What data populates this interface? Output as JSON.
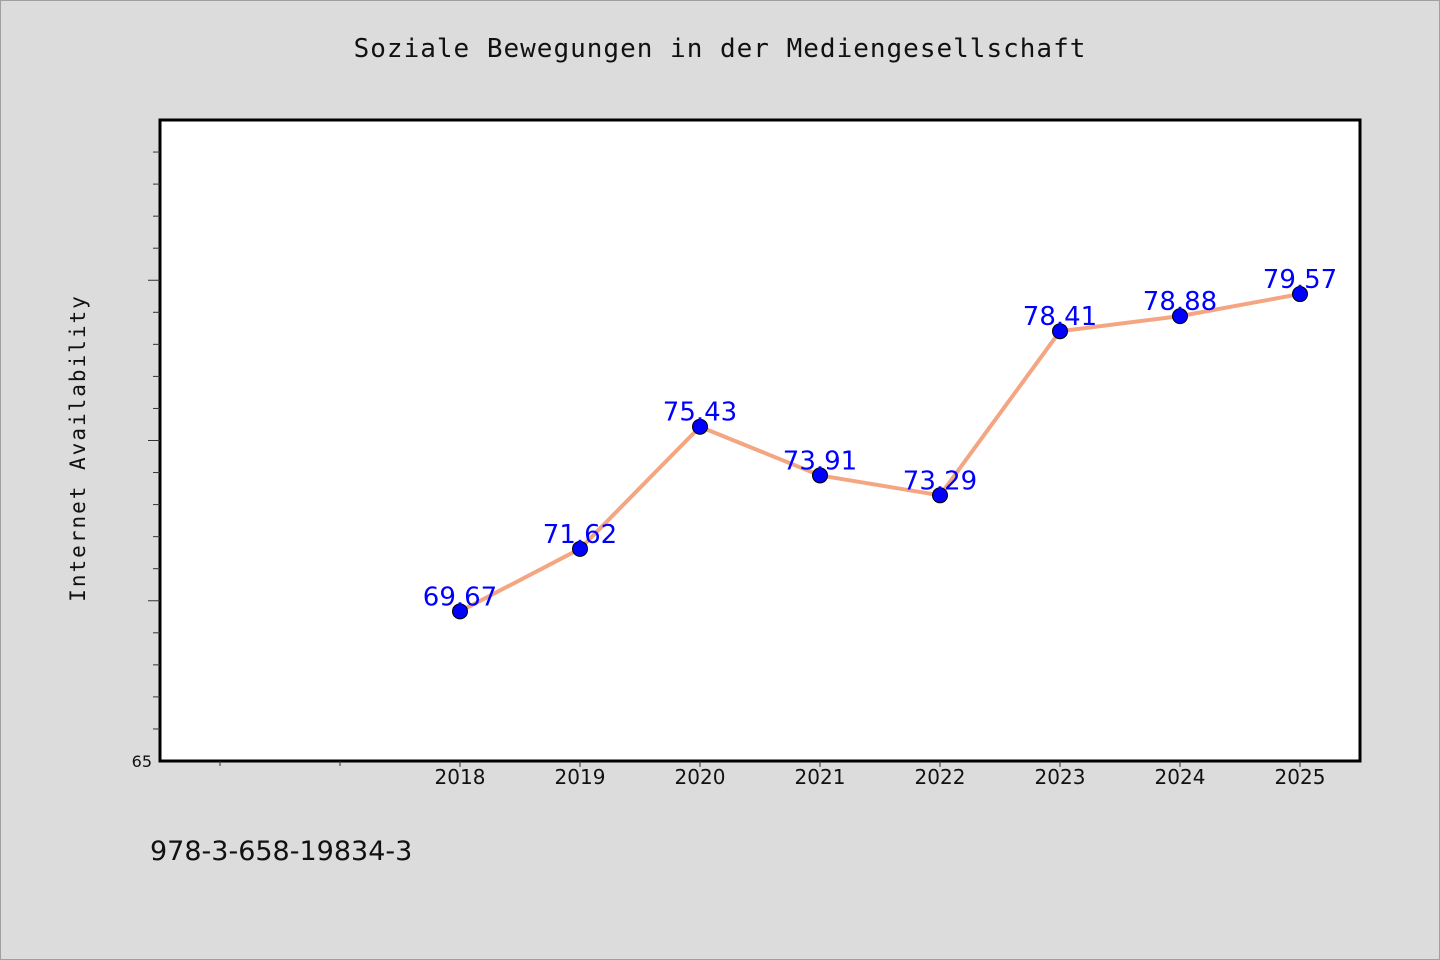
{
  "chart_data": {
    "type": "line",
    "title": "Soziale Bewegungen in der Mediengesellschaft",
    "ylabel": "Internet Availability",
    "xlabel": "",
    "categories": [
      "2018",
      "2019",
      "2020",
      "2021",
      "2022",
      "2023",
      "2024",
      "2025"
    ],
    "series": [
      {
        "values": [
          69.67,
          71.62,
          75.43,
          73.91,
          73.29,
          78.41,
          78.88,
          79.57
        ]
      }
    ],
    "data_labels": [
      "69.67",
      "71.62",
      "75.43",
      "73.91",
      "73.29",
      "78.41",
      "78.88",
      "79.57"
    ],
    "y_tick_labels": [
      "65"
    ],
    "ylim": [
      65,
      85
    ],
    "grid": false,
    "line_color": "#f4a582",
    "marker_color": "#0000ff",
    "label_color": "#0000ff"
  },
  "footer": {
    "id_text": "978-3-658-19834-3"
  }
}
